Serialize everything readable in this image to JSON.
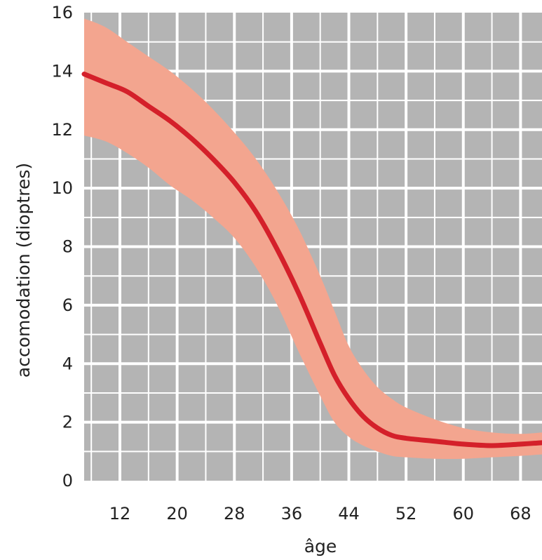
{
  "chart_data": {
    "type": "line",
    "xlabel": "âge",
    "ylabel": "accomodation (dioptres)",
    "xlim": [
      7,
      71
    ],
    "ylim": [
      0,
      16
    ],
    "x_ticks": [
      12,
      20,
      28,
      36,
      44,
      52,
      60,
      68
    ],
    "y_ticks": [
      0,
      2,
      4,
      6,
      8,
      10,
      12,
      14,
      16
    ],
    "grid": true,
    "legend": "none",
    "series": [
      {
        "x": [
          7,
          10,
          13,
          16,
          19,
          22,
          25,
          28,
          31,
          34,
          37,
          40,
          42,
          44,
          46,
          48,
          50,
          52,
          56,
          60,
          64,
          68,
          71
        ],
        "y": [
          13.9,
          13.6,
          13.3,
          12.8,
          12.3,
          11.7,
          11.0,
          10.2,
          9.2,
          7.9,
          6.4,
          4.7,
          3.6,
          2.8,
          2.2,
          1.8,
          1.55,
          1.45,
          1.35,
          1.25,
          1.2,
          1.25,
          1.3
        ],
        "upper": [
          15.8,
          15.5,
          15.0,
          14.5,
          14.0,
          13.4,
          12.7,
          11.9,
          11.0,
          9.9,
          8.6,
          7.0,
          5.8,
          4.6,
          3.8,
          3.2,
          2.8,
          2.5,
          2.1,
          1.8,
          1.65,
          1.6,
          1.65
        ],
        "lower": [
          11.8,
          11.6,
          11.2,
          10.7,
          10.1,
          9.6,
          9.0,
          8.3,
          7.3,
          6.0,
          4.4,
          2.9,
          2.0,
          1.5,
          1.2,
          1.0,
          0.85,
          0.8,
          0.75,
          0.75,
          0.8,
          0.85,
          0.9
        ]
      }
    ],
    "colors": {
      "plot_background": "#b4b4b4",
      "grid": "#ffffff",
      "line": "#d4202a",
      "band": "#f3a58f"
    }
  }
}
